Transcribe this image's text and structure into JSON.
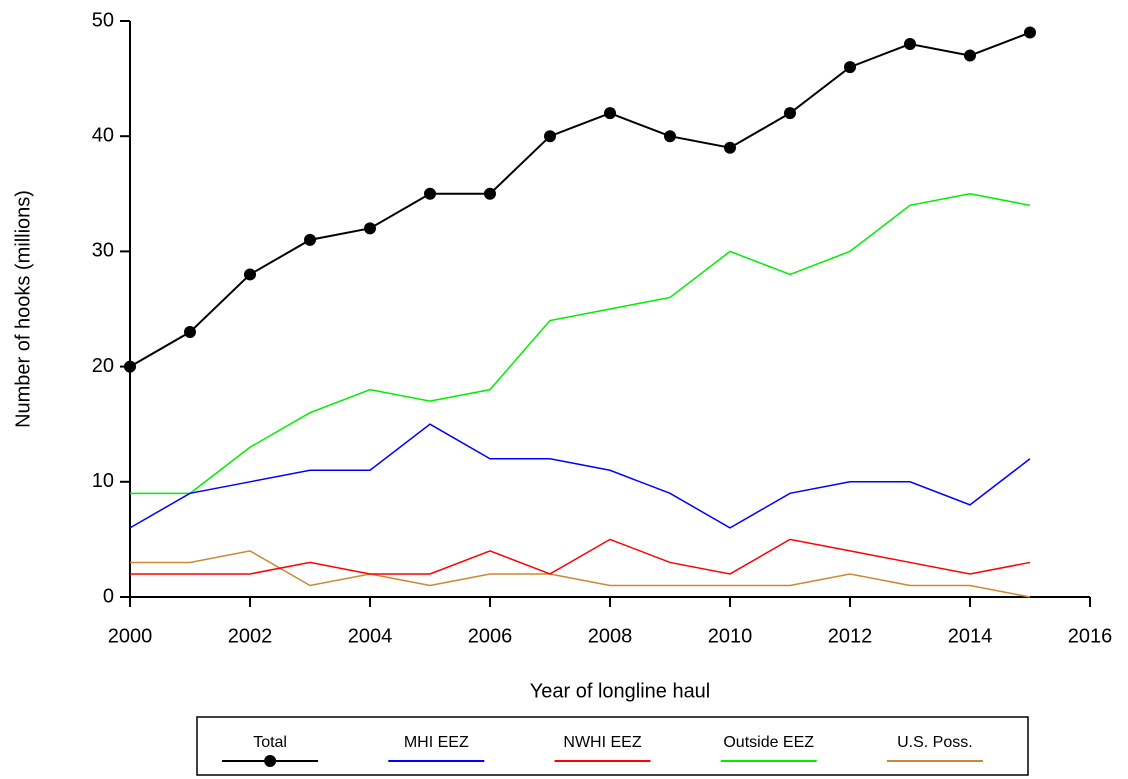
{
  "chart_data": {
    "type": "line",
    "xlabel": "Year of longline haul",
    "ylabel": "Number of hooks (millions)",
    "x": [
      2000,
      2001,
      2002,
      2003,
      2004,
      2005,
      2006,
      2007,
      2008,
      2009,
      2010,
      2011,
      2012,
      2013,
      2014,
      2015
    ],
    "series": [
      {
        "name": "Total",
        "color": "#000000",
        "marker": true,
        "values": [
          20,
          23,
          28,
          31,
          32,
          35,
          35,
          40,
          42,
          40,
          39,
          42,
          46,
          48,
          47,
          49
        ]
      },
      {
        "name": "MHI EEZ",
        "color": "#0000ff",
        "marker": false,
        "values": [
          6,
          9,
          10,
          11,
          11,
          15,
          12,
          12,
          11,
          9,
          6,
          9,
          10,
          10,
          8,
          12
        ]
      },
      {
        "name": "NWHI EEZ",
        "color": "#ff0000",
        "marker": false,
        "values": [
          2,
          2,
          2,
          3,
          2,
          2,
          4,
          2,
          5,
          3,
          2,
          5,
          4,
          3,
          2,
          3
        ]
      },
      {
        "name": "Outside EEZ",
        "color": "#00ee00",
        "marker": false,
        "values": [
          9,
          9,
          13,
          16,
          18,
          17,
          18,
          24,
          25,
          26,
          30,
          28,
          30,
          34,
          35,
          34
        ]
      },
      {
        "name": "U.S. Poss.",
        "color": "#cc8833",
        "marker": false,
        "values": [
          3,
          3,
          4,
          1,
          2,
          1,
          2,
          2,
          1,
          1,
          1,
          1,
          2,
          1,
          1,
          0
        ]
      }
    ],
    "xlim": [
      2000,
      2016
    ],
    "xticks": [
      2000,
      2002,
      2004,
      2006,
      2008,
      2010,
      2012,
      2014,
      2016
    ],
    "ylim": [
      0,
      50
    ],
    "yticks": [
      0,
      10,
      20,
      30,
      40,
      50
    ],
    "grid": false,
    "legend": "bottom"
  }
}
